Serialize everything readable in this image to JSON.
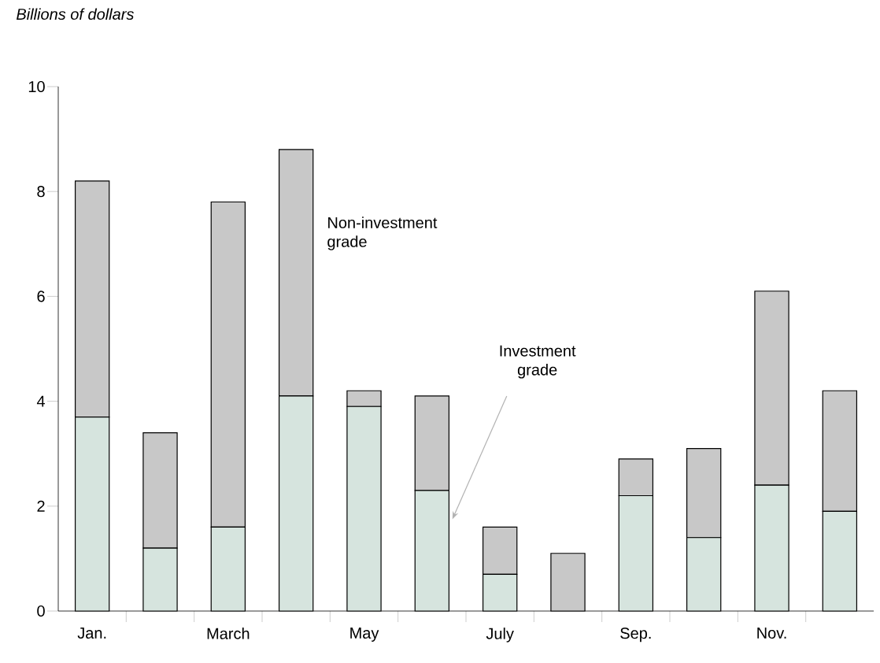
{
  "chart_data": {
    "type": "bar",
    "stacked": true,
    "ylabel": "Billions of dollars",
    "categories": [
      "Jan.",
      null,
      "March",
      null,
      "May",
      null,
      "July",
      null,
      "Sep.",
      null,
      "Nov.",
      null
    ],
    "series": [
      {
        "name": "Investment grade",
        "color": "#d6e4de",
        "values": [
          3.7,
          1.2,
          1.6,
          4.1,
          3.9,
          2.3,
          0.7,
          0,
          2.2,
          1.4,
          2.4,
          1.9
        ]
      },
      {
        "name": "Non-investment grade",
        "color": "#c8c8c8",
        "values": [
          4.5,
          2.2,
          6.2,
          4.7,
          0.3,
          1.8,
          0.9,
          1.1,
          0.7,
          1.7,
          3.7,
          2.3
        ]
      }
    ],
    "ylim": [
      0,
      10
    ],
    "yticks": [
      0,
      2,
      4,
      6,
      8,
      10
    ]
  }
}
